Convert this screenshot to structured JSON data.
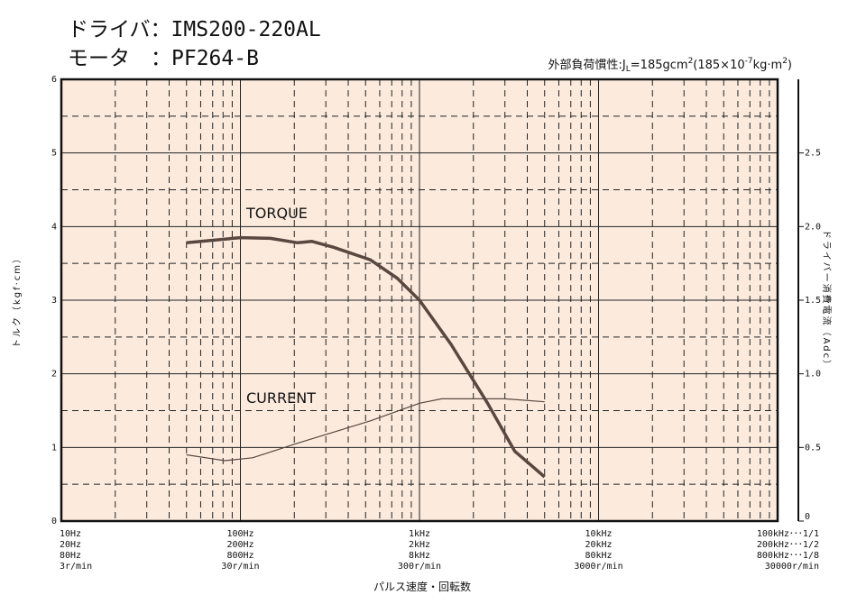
{
  "chart_data": {
    "type": "line",
    "title": [
      "ドライバ：IMS200-220AL",
      "モータ　：PF264-B"
    ],
    "annotation": [
      "外部負荷慣性:J",
      "L",
      "=185gcm",
      "2",
      "(185×10",
      "-7",
      "kg·m",
      "2",
      ")"
    ],
    "xlabel": "パルス速度・回転数",
    "ylabel": "トルク（kgf·cm）",
    "y2label": "ドライバー消費電流（Adc）",
    "xscale": "log",
    "xlim": [
      10,
      100000
    ],
    "xticks": [
      {
        "value": 10,
        "label": [
          "10Hz",
          "20Hz",
          "80Hz",
          "3r/min"
        ]
      },
      {
        "value": 100,
        "label": [
          "100Hz",
          "200Hz",
          "800Hz",
          "30r/min"
        ]
      },
      {
        "value": 1000,
        "label": [
          "1kHz",
          "2kHz",
          "8kHz",
          "300r/min"
        ]
      },
      {
        "value": 10000,
        "label": [
          "10kHz",
          "20kHz",
          "80kHz",
          "3000r/min"
        ]
      },
      {
        "value": 100000,
        "label": [
          "100kHz･･･1/1",
          "200kHz･･･1/2",
          "800kHz･･･1/8",
          "30000r/min"
        ]
      }
    ],
    "xminorticks": [
      20,
      30,
      40,
      50,
      60,
      70,
      80,
      90,
      200,
      300,
      400,
      500,
      600,
      700,
      800,
      900,
      2000,
      3000,
      4000,
      5000,
      6000,
      7000,
      8000,
      9000,
      20000,
      30000,
      40000,
      50000,
      60000,
      70000,
      80000,
      90000
    ],
    "ylim": [
      0,
      6
    ],
    "yticks": [
      0,
      1,
      2,
      3,
      4,
      5,
      6
    ],
    "yminorticks": [
      0.5,
      1.5,
      2.5,
      3.5,
      4.5,
      5.5
    ],
    "y2lim": [
      0,
      3
    ],
    "y2ticks": [
      0,
      {
        "value": 0.5,
        "label": "0.5"
      },
      {
        "value": 1,
        "label": "1.0"
      },
      {
        "value": 1.5,
        "label": "1.5"
      },
      {
        "value": 2,
        "label": "2.0"
      },
      {
        "value": 2.5,
        "label": "2.5"
      }
    ],
    "grid": true,
    "series": [
      {
        "name": "TORQUE",
        "color": "#5a4740",
        "axis": "y",
        "x": [
          50,
          100,
          147,
          209,
          250,
          330,
          530,
          750,
          1000,
          1500,
          2400,
          3400,
          5000
        ],
        "values": [
          3.78,
          3.85,
          3.84,
          3.78,
          3.8,
          3.72,
          3.55,
          3.3,
          3.0,
          2.4,
          1.6,
          0.95,
          0.6
        ]
      },
      {
        "name": "CURRENT",
        "color": "#5a4740",
        "axis": "y2",
        "x": [
          50,
          82,
          117,
          210,
          530,
          1000,
          1330,
          3000,
          5000
        ],
        "values": [
          0.45,
          0.41,
          0.43,
          0.53,
          0.68,
          0.8,
          0.83,
          0.83,
          0.81
        ]
      }
    ]
  }
}
